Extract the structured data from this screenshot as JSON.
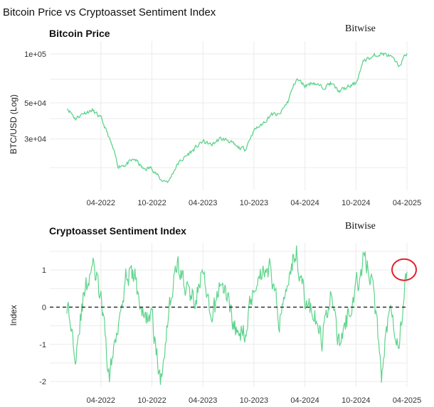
{
  "page": {
    "title": "Bitcoin Price vs Cryptoasset Sentiment Index"
  },
  "colors": {
    "line": "#5fd48c",
    "annotation": "#e0222a",
    "zero_line": "#222222",
    "grid": "#ebebeb"
  },
  "chart_data": [
    {
      "type": "line",
      "title": "Bitcoin Price",
      "brand": "Bitwise",
      "xlabel": "",
      "ylabel": "BTC/USD (Log)",
      "yscale": "log",
      "ylim": [
        14500,
        115000
      ],
      "x_ticks": [
        "04-2022",
        "10-2022",
        "04-2023",
        "10-2023",
        "04-2024",
        "10-2024",
        "04-2025"
      ],
      "y_ticks": [
        {
          "value": 30000,
          "label": "3e+04"
        },
        {
          "value": 50000,
          "label": "5e+04"
        },
        {
          "value": 100000,
          "label": "1e+05"
        }
      ],
      "x_range": [
        "2021-12",
        "2025-04"
      ],
      "x": [
        "2021-12",
        "2022-01",
        "2022-02",
        "2022-03",
        "2022-04",
        "2022-05",
        "2022-06",
        "2022-07",
        "2022-08",
        "2022-09",
        "2022-10",
        "2022-11",
        "2022-12",
        "2023-01",
        "2023-02",
        "2023-03",
        "2023-04",
        "2023-05",
        "2023-06",
        "2023-07",
        "2023-08",
        "2023-09",
        "2023-10",
        "2023-11",
        "2023-12",
        "2024-01",
        "2024-02",
        "2024-03",
        "2024-04",
        "2024-05",
        "2024-06",
        "2024-07",
        "2024-08",
        "2024-09",
        "2024-10",
        "2024-11",
        "2024-12",
        "2025-01",
        "2025-02",
        "2025-03",
        "2025-04"
      ],
      "values": [
        47000,
        40000,
        43500,
        45000,
        40000,
        30000,
        20500,
        21000,
        22500,
        19500,
        20000,
        16800,
        16500,
        21000,
        23500,
        26000,
        29000,
        27500,
        30000,
        29500,
        26500,
        26000,
        34000,
        37000,
        42500,
        42000,
        51000,
        70000,
        64000,
        67000,
        62000,
        66000,
        59000,
        62000,
        66000,
        92000,
        96000,
        101000,
        97000,
        84000,
        101000
      ]
    },
    {
      "type": "line",
      "title": "Cryptoasset Sentiment Index",
      "brand": "Bitwise",
      "xlabel": "",
      "ylabel": "Index",
      "ylim": [
        -2.15,
        1.65
      ],
      "zero_line": true,
      "x_ticks": [
        "04-2022",
        "10-2022",
        "04-2023",
        "10-2023",
        "04-2024",
        "10-2024",
        "04-2025"
      ],
      "y_ticks": [
        {
          "value": -2,
          "label": "-2"
        },
        {
          "value": -1,
          "label": "-1"
        },
        {
          "value": 0,
          "label": "0"
        },
        {
          "value": 1,
          "label": "1"
        }
      ],
      "x_range": [
        "2021-12",
        "2025-04"
      ],
      "x": [
        "2021-12",
        "2022-01",
        "2022-02",
        "2022-03",
        "2022-04",
        "2022-05",
        "2022-06",
        "2022-07",
        "2022-08",
        "2022-09",
        "2022-10",
        "2022-11",
        "2022-12",
        "2023-01",
        "2023-02",
        "2023-03",
        "2023-04",
        "2023-05",
        "2023-06",
        "2023-07",
        "2023-08",
        "2023-09",
        "2023-10",
        "2023-11",
        "2023-12",
        "2024-01",
        "2024-02",
        "2024-03",
        "2024-04",
        "2024-05",
        "2024-06",
        "2024-07",
        "2024-08",
        "2024-09",
        "2024-10",
        "2024-11",
        "2024-12",
        "2025-01",
        "2025-02",
        "2025-03",
        "2025-04"
      ],
      "values": [
        0.1,
        -1.2,
        0.3,
        1.2,
        0.2,
        -1.9,
        -0.4,
        0.9,
        0.8,
        -0.3,
        -0.2,
        -2.1,
        0.0,
        1.2,
        0.5,
        0.2,
        0.9,
        -0.5,
        0.7,
        0.2,
        -0.8,
        -0.6,
        0.6,
        1.0,
        1.05,
        -0.4,
        0.9,
        1.5,
        0.2,
        -0.2,
        -0.9,
        0.4,
        -1.0,
        -0.3,
        0.5,
        1.35,
        0.6,
        -1.8,
        0.2,
        -1.0,
        0.95
      ],
      "annotation": "circle-around-latest-value"
    }
  ]
}
